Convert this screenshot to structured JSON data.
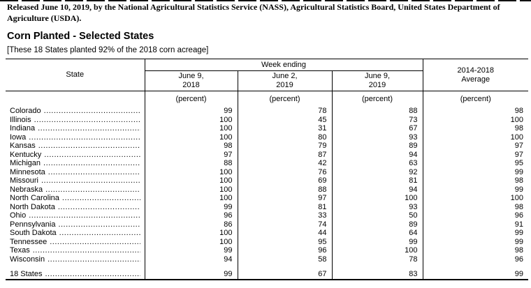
{
  "page": {
    "released_line": "Released June 10, 2019, by the National Agricultural Statistics Service (NASS), Agricultural Statistics Board, United States Department of\nAgriculture (USDA).",
    "title": "Corn Planted - Selected States",
    "subtitle": "[These 18 States planted 92% of the 2018 corn acreage]"
  },
  "table": {
    "state_header": "State",
    "week_ending_header": "Week ending",
    "columns": [
      "June 9,\n2018",
      "June 2,\n2019",
      "June 9,\n2019",
      "2014-2018\nAverage"
    ],
    "unit_label": "(percent)",
    "rows": [
      {
        "state": "Colorado",
        "values": [
          99,
          78,
          88,
          98
        ]
      },
      {
        "state": "Illinois",
        "values": [
          100,
          45,
          73,
          100
        ]
      },
      {
        "state": "Indiana",
        "values": [
          100,
          31,
          67,
          98
        ]
      },
      {
        "state": "Iowa",
        "values": [
          100,
          80,
          93,
          100
        ]
      },
      {
        "state": "Kansas",
        "values": [
          98,
          79,
          89,
          97
        ]
      },
      {
        "state": "Kentucky",
        "values": [
          97,
          87,
          94,
          97
        ]
      },
      {
        "state": "Michigan",
        "values": [
          88,
          42,
          63,
          95
        ]
      },
      {
        "state": "Minnesota",
        "values": [
          100,
          76,
          92,
          99
        ]
      },
      {
        "state": "Missouri",
        "values": [
          100,
          69,
          81,
          98
        ]
      },
      {
        "state": "Nebraska",
        "values": [
          100,
          88,
          94,
          99
        ]
      },
      {
        "state": "North Carolina",
        "values": [
          100,
          97,
          100,
          100
        ]
      },
      {
        "state": "North Dakota",
        "values": [
          99,
          81,
          93,
          98
        ]
      },
      {
        "state": "Ohio",
        "values": [
          96,
          33,
          50,
          96
        ]
      },
      {
        "state": "Pennsylvania",
        "values": [
          86,
          74,
          89,
          91
        ]
      },
      {
        "state": "South Dakota",
        "values": [
          100,
          44,
          64,
          99
        ]
      },
      {
        "state": "Tennessee",
        "values": [
          100,
          95,
          99,
          99
        ]
      },
      {
        "state": "Texas",
        "values": [
          99,
          96,
          100,
          98
        ]
      },
      {
        "state": "Wisconsin",
        "values": [
          94,
          58,
          78,
          96
        ]
      }
    ],
    "total_row": {
      "state": "18 States",
      "values": [
        99,
        67,
        83,
        99
      ]
    }
  }
}
